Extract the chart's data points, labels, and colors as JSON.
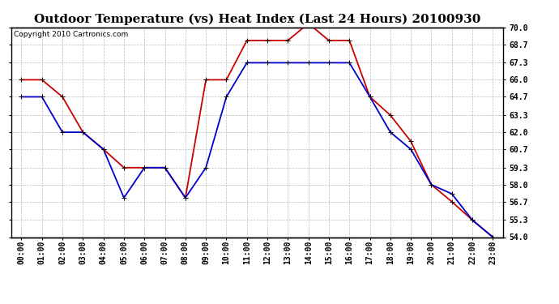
{
  "title": "Outdoor Temperature (vs) Heat Index (Last 24 Hours) 20100930",
  "copyright": "Copyright 2010 Cartronics.com",
  "hours": [
    "00:00",
    "01:00",
    "02:00",
    "03:00",
    "04:00",
    "05:00",
    "06:00",
    "07:00",
    "08:00",
    "09:00",
    "10:00",
    "11:00",
    "12:00",
    "13:00",
    "14:00",
    "15:00",
    "16:00",
    "17:00",
    "18:00",
    "19:00",
    "20:00",
    "21:00",
    "22:00",
    "23:00"
  ],
  "temp": [
    64.7,
    64.7,
    62.0,
    62.0,
    60.7,
    57.0,
    59.3,
    59.3,
    57.0,
    59.3,
    64.7,
    67.3,
    67.3,
    67.3,
    67.3,
    67.3,
    67.3,
    64.7,
    62.0,
    60.7,
    58.0,
    57.3,
    55.3,
    54.0
  ],
  "heat": [
    66.0,
    66.0,
    64.7,
    62.0,
    60.7,
    59.3,
    59.3,
    59.3,
    57.0,
    66.0,
    66.0,
    69.0,
    69.0,
    69.0,
    70.3,
    69.0,
    69.0,
    64.7,
    63.3,
    61.3,
    58.0,
    56.7,
    55.3,
    54.0
  ],
  "temp_color": "#0000cc",
  "heat_color": "#cc0000",
  "background": "#ffffff",
  "grid_color": "#bbbbbb",
  "ymin": 54.0,
  "ymax": 70.0,
  "yticks": [
    54.0,
    55.3,
    56.7,
    58.0,
    59.3,
    60.7,
    62.0,
    63.3,
    64.7,
    66.0,
    67.3,
    68.7,
    70.0
  ],
  "title_fontsize": 11,
  "copyright_fontsize": 6.5,
  "tick_fontsize": 7
}
